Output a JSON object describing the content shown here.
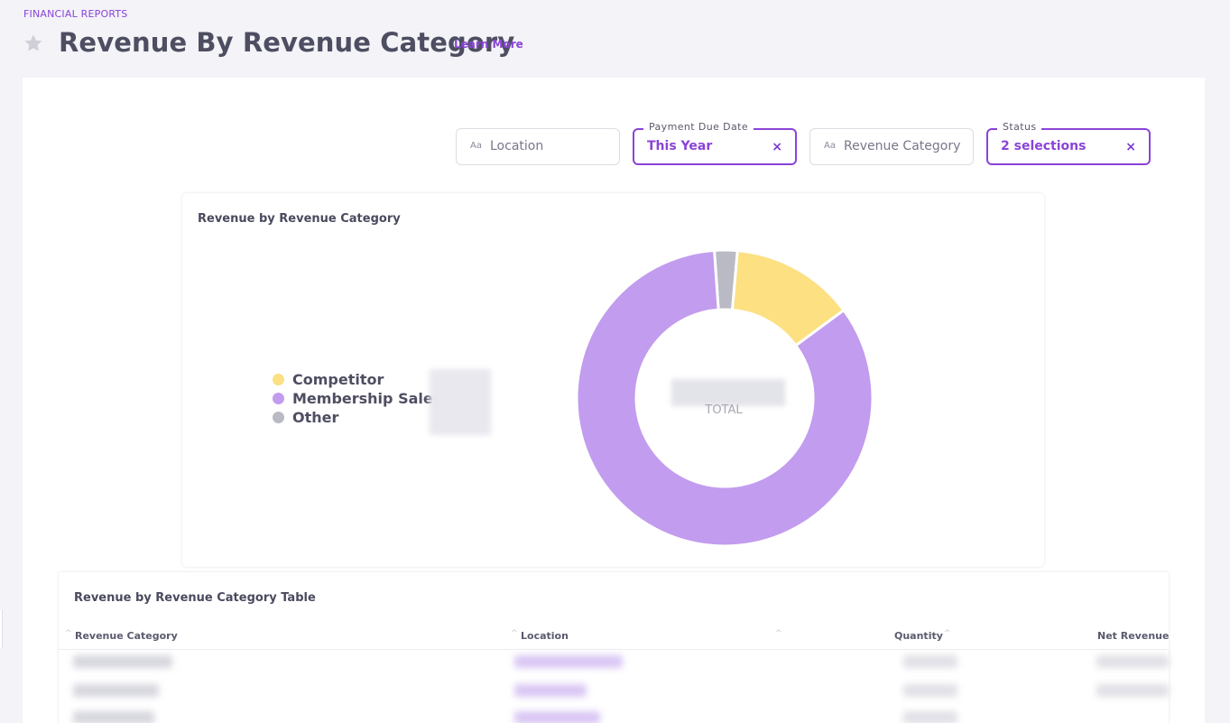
{
  "breadcrumb": "FINANCIAL REPORTS",
  "page": {
    "title": "Revenue By Revenue Category",
    "learn_more": "Learn More"
  },
  "filters": {
    "location": {
      "placeholder": "Location",
      "type_icon": "Aa"
    },
    "payment_due_date": {
      "label": "Payment Due Date",
      "value": "This Year",
      "clear": "×"
    },
    "revenue_category": {
      "placeholder": "Revenue Category",
      "type_icon": "Aa"
    },
    "status": {
      "label": "Status",
      "value": "2 selections",
      "clear": "×"
    }
  },
  "chart_card": {
    "title": "Revenue by Revenue Category",
    "total_label": "TOTAL",
    "legend": [
      {
        "label": "Competitor",
        "color": "#fce082"
      },
      {
        "label": "Membership Sales",
        "color": "#c29cee"
      },
      {
        "label": "Other",
        "color": "#b9bac3"
      }
    ]
  },
  "chart_data": {
    "type": "pie",
    "title": "Revenue by Revenue Category",
    "categories": [
      "Competitor",
      "Membership Sales",
      "Other"
    ],
    "values": [
      13.5,
      84.0,
      2.5
    ],
    "colors": [
      "#fce082",
      "#c29cee",
      "#b9bac3"
    ],
    "legend_position": "left",
    "center_label": "TOTAL"
  },
  "table": {
    "title": "Revenue by Revenue Category Table",
    "columns": [
      "Revenue Category",
      "Location",
      "Quantity",
      "Net Revenue"
    ]
  }
}
